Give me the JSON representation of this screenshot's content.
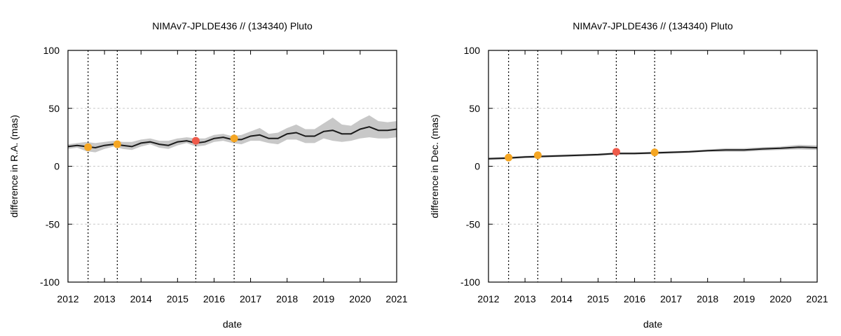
{
  "chart_data": [
    {
      "type": "line",
      "title": "NIMAv7-JPLDE436 // (134340) Pluto",
      "xlabel": "date",
      "ylabel": "difference in R.A. (mas)",
      "xlim": [
        2012,
        2021
      ],
      "ylim": [
        -100,
        100
      ],
      "x_ticks": [
        2012,
        2013,
        2014,
        2015,
        2016,
        2017,
        2018,
        2019,
        2020,
        2021
      ],
      "y_ticks": [
        -100,
        -50,
        0,
        50,
        100
      ],
      "grid": true,
      "event_lines": [
        2012.55,
        2013.35,
        2015.5,
        2016.55
      ],
      "series": [
        {
          "name": "difference",
          "color": "#1a1a1a",
          "x": [
            2012.0,
            2012.25,
            2012.5,
            2012.75,
            2013.0,
            2013.25,
            2013.5,
            2013.75,
            2014.0,
            2014.25,
            2014.5,
            2014.75,
            2015.0,
            2015.25,
            2015.5,
            2015.75,
            2016.0,
            2016.25,
            2016.5,
            2016.75,
            2017.0,
            2017.25,
            2017.5,
            2017.75,
            2018.0,
            2018.25,
            2018.5,
            2018.75,
            2019.0,
            2019.25,
            2019.5,
            2019.75,
            2020.0,
            2020.25,
            2020.5,
            2020.75,
            2021.0
          ],
          "values": [
            17,
            18,
            17,
            16,
            18,
            19,
            18,
            17,
            20,
            21,
            19,
            18,
            21,
            22,
            20,
            21,
            24,
            25,
            23,
            23,
            26,
            27,
            24,
            24,
            28,
            29,
            26,
            26,
            30,
            31,
            28,
            28,
            32,
            34,
            31,
            31,
            32
          ]
        },
        {
          "name": "uncertainty",
          "color": "#c8c8c8",
          "x": [
            2012.0,
            2012.25,
            2012.5,
            2012.75,
            2013.0,
            2013.25,
            2013.5,
            2013.75,
            2014.0,
            2014.25,
            2014.5,
            2014.75,
            2015.0,
            2015.25,
            2015.5,
            2015.75,
            2016.0,
            2016.25,
            2016.5,
            2016.75,
            2017.0,
            2017.25,
            2017.5,
            2017.75,
            2018.0,
            2018.25,
            2018.5,
            2018.75,
            2019.0,
            2019.25,
            2019.5,
            2019.75,
            2020.0,
            2020.25,
            2020.5,
            2020.75,
            2021.0
          ],
          "lower": [
            15,
            16,
            13,
            12,
            15,
            17,
            15,
            14,
            17,
            19,
            16,
            15,
            18,
            20,
            17,
            18,
            21,
            22,
            20,
            19,
            22,
            22,
            20,
            19,
            23,
            23,
            20,
            20,
            24,
            22,
            21,
            22,
            24,
            25,
            24,
            24,
            25
          ],
          "upper": [
            19,
            20,
            21,
            20,
            21,
            22,
            21,
            21,
            23,
            24,
            22,
            22,
            24,
            25,
            24,
            24,
            27,
            28,
            26,
            27,
            30,
            33,
            28,
            29,
            33,
            36,
            32,
            32,
            37,
            42,
            36,
            35,
            40,
            44,
            39,
            38,
            39
          ]
        }
      ],
      "markers": [
        {
          "x": 2012.55,
          "y": 16.5,
          "color": "#f5a623"
        },
        {
          "x": 2013.35,
          "y": 19,
          "color": "#f5a623"
        },
        {
          "x": 2015.5,
          "y": 22,
          "color": "#ee5a4a"
        },
        {
          "x": 2016.55,
          "y": 24,
          "color": "#f5a623"
        }
      ]
    },
    {
      "type": "line",
      "title": "NIMAv7-JPLDE436 // (134340) Pluto",
      "xlabel": "date",
      "ylabel": "difference in Dec. (mas)",
      "xlim": [
        2012,
        2021
      ],
      "ylim": [
        -100,
        100
      ],
      "x_ticks": [
        2012,
        2013,
        2014,
        2015,
        2016,
        2017,
        2018,
        2019,
        2020,
        2021
      ],
      "y_ticks": [
        -100,
        -50,
        0,
        50,
        100
      ],
      "grid": true,
      "event_lines": [
        2012.55,
        2013.35,
        2015.5,
        2016.55
      ],
      "series": [
        {
          "name": "difference",
          "color": "#1a1a1a",
          "x": [
            2012.0,
            2012.5,
            2013.0,
            2013.5,
            2014.0,
            2014.5,
            2015.0,
            2015.5,
            2016.0,
            2016.5,
            2017.0,
            2017.5,
            2018.0,
            2018.5,
            2019.0,
            2019.5,
            2020.0,
            2020.5,
            2021.0
          ],
          "values": [
            6.5,
            7,
            8,
            8.5,
            9,
            9.5,
            10,
            11,
            11,
            11.5,
            12,
            12.5,
            13.5,
            14,
            14,
            15,
            15.5,
            16.5,
            16
          ]
        },
        {
          "name": "uncertainty",
          "color": "#c8c8c8",
          "x": [
            2012.0,
            2012.5,
            2013.0,
            2013.5,
            2014.0,
            2014.5,
            2015.0,
            2015.5,
            2016.0,
            2016.5,
            2017.0,
            2017.5,
            2018.0,
            2018.5,
            2019.0,
            2019.5,
            2020.0,
            2020.5,
            2021.0
          ],
          "lower": [
            5.5,
            6,
            7,
            7.5,
            8,
            8.5,
            9,
            10,
            10,
            10.5,
            11,
            11.5,
            12.5,
            12.5,
            12.5,
            13.5,
            14,
            14.5,
            14
          ],
          "upper": [
            7.5,
            8,
            9,
            9.5,
            10,
            10.5,
            11,
            12,
            12,
            12.5,
            13,
            13.5,
            14.5,
            15.5,
            15.5,
            16.5,
            17,
            18.5,
            18
          ]
        }
      ],
      "markers": [
        {
          "x": 2012.55,
          "y": 7.5,
          "color": "#f5a623"
        },
        {
          "x": 2013.35,
          "y": 9.5,
          "color": "#f5a623"
        },
        {
          "x": 2015.5,
          "y": 12.5,
          "color": "#ee5a4a"
        },
        {
          "x": 2016.55,
          "y": 12,
          "color": "#f5a623"
        }
      ]
    }
  ]
}
